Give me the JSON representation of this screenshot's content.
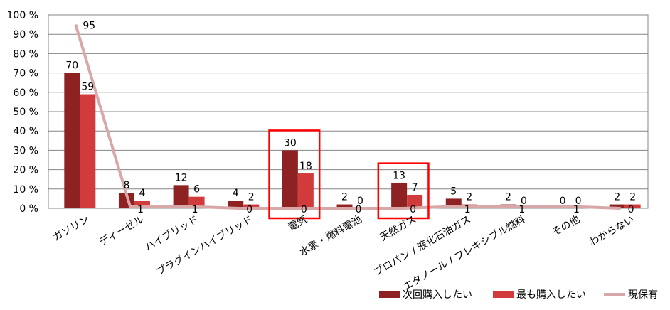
{
  "chart_data": {
    "type": "bar",
    "title": "",
    "xlabel": "",
    "ylabel": "",
    "ylim": [
      0,
      100
    ],
    "y_ticks": [
      "0 %",
      "10 %",
      "20 %",
      "30 %",
      "40 %",
      "50 %",
      "60 %",
      "70 %",
      "80 %",
      "90 %",
      "100 %"
    ],
    "grid": true,
    "legend_position": "bottom-right",
    "categories": [
      "ガソリン",
      "ディーゼル",
      "ハイブリッド",
      "プラグインハイブリッド",
      "電気",
      "水素・燃料電池",
      "天然ガス",
      "プロパン / 液化石油ガス",
      "エタノール / フレキシブル燃料",
      "その他",
      "わからない"
    ],
    "series": [
      {
        "name": "次回購入したい",
        "type": "bar",
        "color": "#8e2121",
        "values": [
          70,
          8,
          12,
          4,
          30,
          2,
          13,
          5,
          2,
          0,
          2
        ]
      },
      {
        "name": "最も購入したい",
        "type": "bar",
        "color": "#d23b3b",
        "values": [
          59,
          4,
          6,
          2,
          18,
          0,
          7,
          2,
          0,
          0,
          2
        ]
      },
      {
        "name": "現保有",
        "type": "line",
        "color": "#d8a7a7",
        "values": [
          95,
          1,
          1,
          0,
          0,
          0,
          0,
          1,
          1,
          1,
          0
        ]
      }
    ],
    "highlighted_categories": [
      "電気",
      "天然ガス"
    ]
  }
}
